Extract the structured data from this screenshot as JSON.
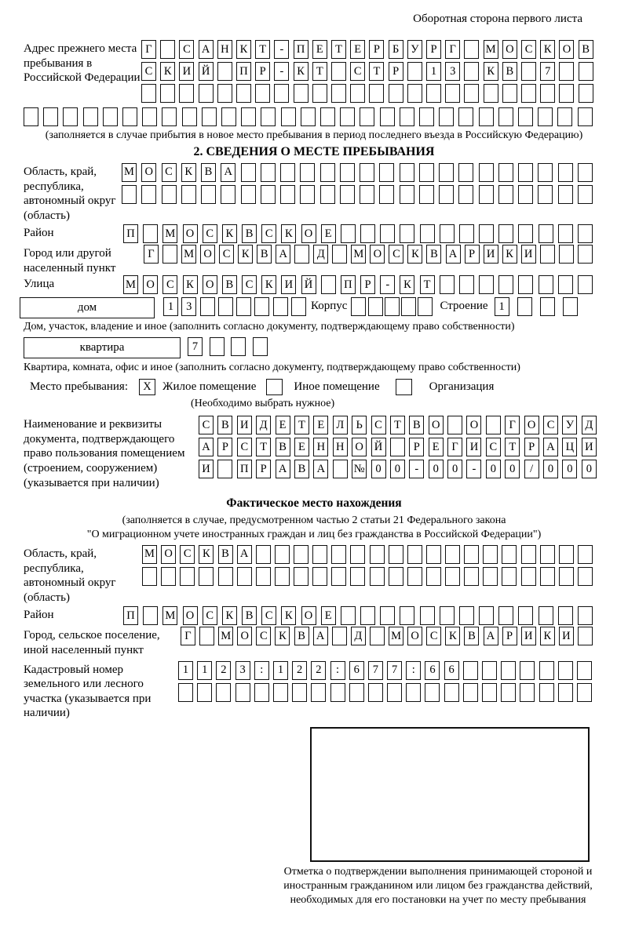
{
  "page": {
    "corner_note": "Оборотная сторона первого листа"
  },
  "prev_address": {
    "label": "Адрес прежнего места пребывания в Российской Федерации",
    "rows": [
      {
        "count": 24,
        "text": "Г САНКТ-ПЕТЕРБУРГ МОСКОВ"
      },
      {
        "count": 24,
        "text": "СКИЙ ПР-КТ СТР 13 КВ 7"
      },
      {
        "count": 24,
        "text": ""
      }
    ],
    "overflow_row": {
      "count": 29,
      "text": ""
    },
    "note": "(заполняется в случае прибытия в новое место пребывания в период последнего въезда в Российскую Федерацию)"
  },
  "section2": {
    "title": "2. СВЕДЕНИЯ О МЕСТЕ ПРЕБЫВАНИЯ",
    "region": {
      "label": "Область, край, республика, автономный округ (область)",
      "rows": [
        {
          "count": 24,
          "text": "МОСКВА"
        },
        {
          "count": 24,
          "text": ""
        }
      ]
    },
    "district": {
      "label": "Район",
      "row": {
        "count": 24,
        "text": "П МОСКВСКОЕ"
      }
    },
    "city": {
      "label": "Город или другой населенный пункт",
      "row": {
        "count": 24,
        "text": "Г МОСКВА Д МОСКВАРИКИ"
      }
    },
    "street": {
      "label": "Улица",
      "row": {
        "count": 24,
        "text": "МОСКОВСКИЙ ПР-КТ"
      }
    },
    "house": {
      "box_label": "дом",
      "row": {
        "count": 8,
        "text": "13"
      },
      "korpus_label": "Корпус",
      "korpus_row": {
        "count": 5,
        "text": ""
      },
      "stroenie_label": "Строение",
      "stroenie_row": {
        "count": 4,
        "text": "1"
      }
    },
    "house_note": "Дом, участок, владение и иное (заполнить согласно документу, подтверждающему право собственности)",
    "apartment": {
      "box_label": "квартира",
      "row": {
        "count": 4,
        "text": "7"
      }
    },
    "apartment_note": "Квартира, комната, офис и иное (заполнить согласно документу, подтверждающему право собственности)",
    "stay_type": {
      "label": "Место пребывания:",
      "options": [
        {
          "label": "Жилое помещение",
          "mark": "X"
        },
        {
          "label": "Иное помещение",
          "mark": ""
        },
        {
          "label": "Организация",
          "mark": ""
        }
      ],
      "note": "(Необходимо выбрать нужное)"
    },
    "document": {
      "label": "Наименование и реквизиты документа, подтверждающего право пользования помещением (строением, сооружением) (указывается при наличии)",
      "rows": [
        {
          "count": 21,
          "text": "СВИДЕТЕЛЬСТВО О ГОСУД"
        },
        {
          "count": 21,
          "text": "АРСТВЕННОЙ РЕГИСТРАЦИ"
        },
        {
          "count": 21,
          "text": "И ПРАВА №00-00-00/000"
        }
      ]
    }
  },
  "section3": {
    "title": "Фактическое место нахождения",
    "note_line1": "(заполняется в случае, предусмотренном частью 2 статьи 21 Федерального закона",
    "note_line2": "\"О миграционном учете иностранных граждан и лиц без гражданства в Российской Федерации\")",
    "region": {
      "label": "Область, край, республика, автономный округ (область)",
      "rows": [
        {
          "count": 24,
          "text": "МОСКВА"
        },
        {
          "count": 24,
          "text": ""
        }
      ]
    },
    "district": {
      "label": "Район",
      "row": {
        "count": 24,
        "text": "П МОСКВСКОЕ"
      }
    },
    "city": {
      "label": "Город, сельское поселение, иной населенный пункт",
      "row": {
        "count": 22,
        "text": "Г МОСКВА Д МОСКВАРИКИ"
      }
    },
    "cadastral": {
      "label": "Кадастровый номер земельного или лесного участка (указывается при наличии)",
      "rows": [
        {
          "count": 22,
          "text": "1123:122:677:66"
        },
        {
          "count": 22,
          "text": ""
        }
      ]
    },
    "stamp_caption": "Отметка о подтверждении выполнения принимающей стороной и иностранным гражданином или лицом без гражданства действий, необходимых для его постановки на учет по месту пребывания"
  }
}
